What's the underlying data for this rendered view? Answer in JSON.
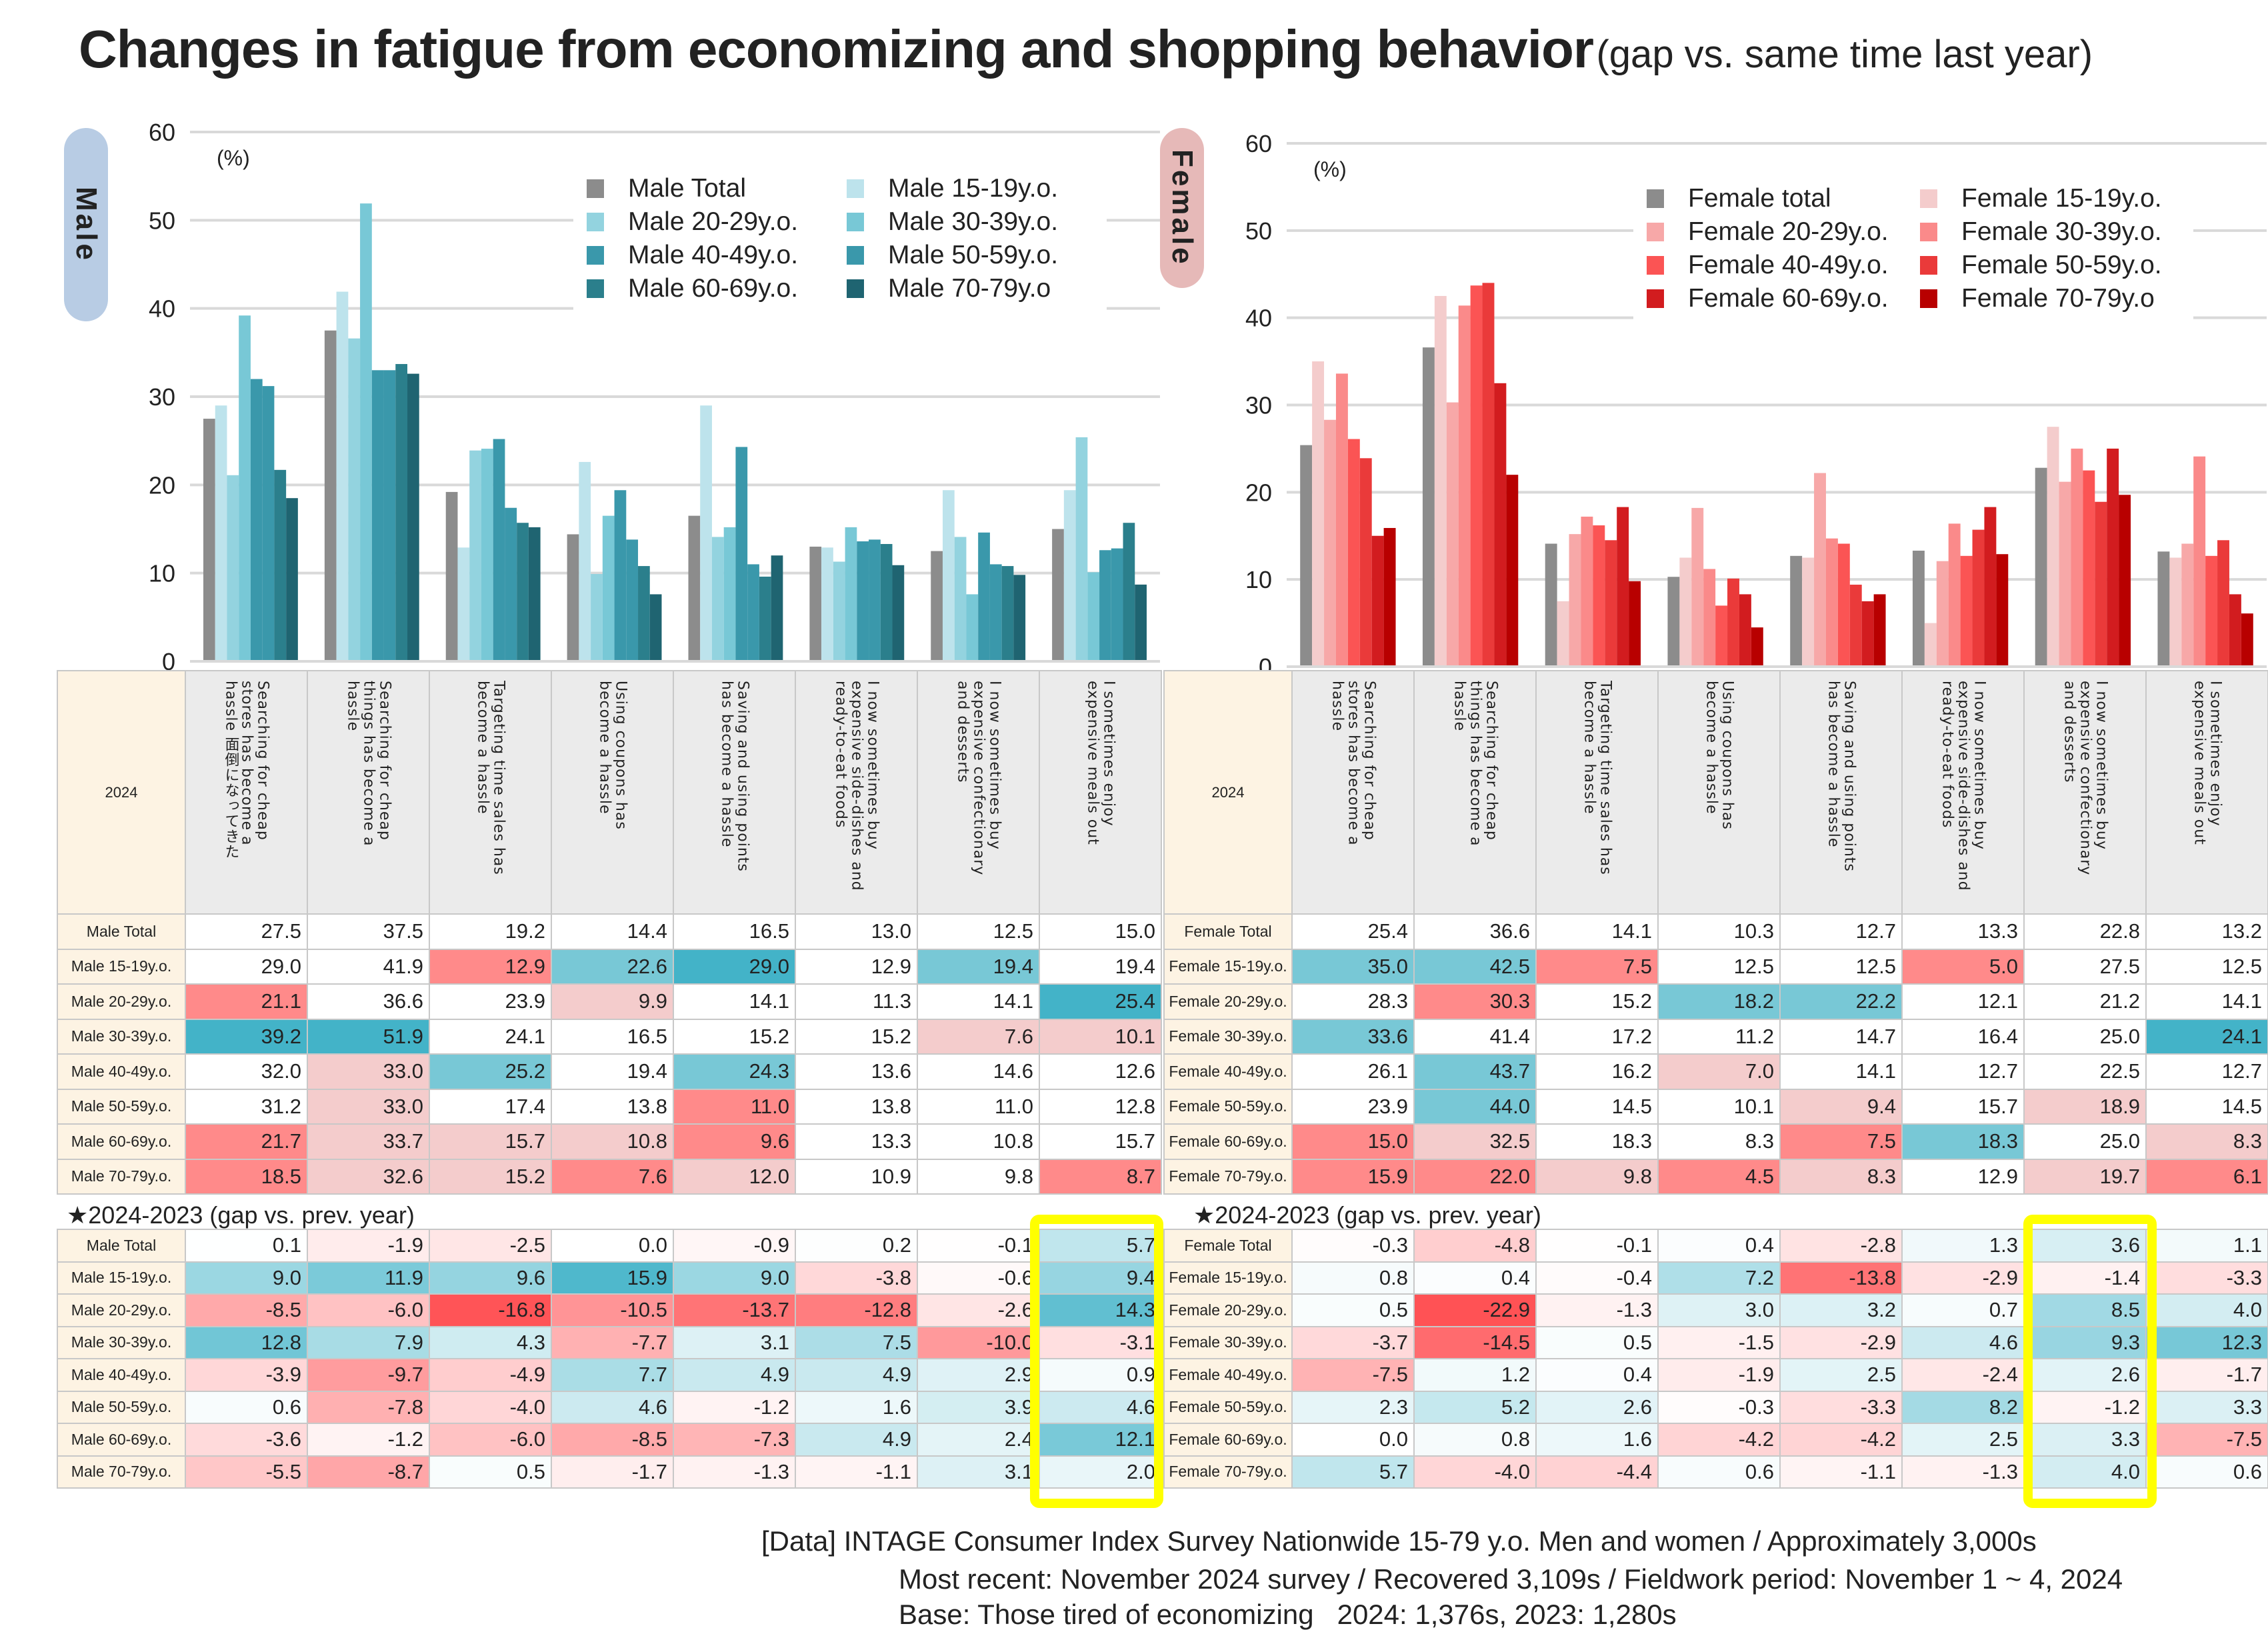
{
  "title": {
    "main": "Changes in fatigue from economizing and shopping behavior",
    "sub": "(gap vs. same time last year)"
  },
  "categories": [
    "Searching for cheap stores has become a hassle",
    "Searching for cheap things has become a hassle",
    "Targeting time sales has become a hassle",
    "Using coupons has become a hassle",
    "Saving and using points has become a hassle",
    "I now sometimes buy expensive side-dishes and ready-to-eat foods",
    "I now sometimes buy expensive confectionary and desserts",
    "I sometimes enjoy expensive meals out"
  ],
  "male": {
    "pill_label": "Male",
    "table_corner": "2024",
    "first_header_extra": "面倒になってきた",
    "diff_label": "★2024-2023 (gap vs. prev. year)",
    "rows": [
      "Male Total",
      "Male 15-19y.o.",
      "Male 20-29y.o.",
      "Male 30-39y.o.",
      "Male 40-49y.o.",
      "Male 50-59y.o.",
      "Male 60-69y.o.",
      "Male 70-79y.o."
    ]
  },
  "female": {
    "pill_label": "Female",
    "table_corner": "2024",
    "diff_label": "★2024-2023 (gap vs. prev. year)",
    "rows": [
      "Female Total",
      "Female 15-19y.o.",
      "Female 20-29y.o.",
      "Female 30-39y.o.",
      "Female 40-49y.o.",
      "Female 50-59y.o.",
      "Female 60-69y.o.",
      "Female 70-79y.o."
    ]
  },
  "chart_data": [
    {
      "type": "bar",
      "title": "Male",
      "ylabel": "(%)",
      "ylim": [
        0,
        60
      ],
      "yticks": [
        0,
        10,
        20,
        30,
        40,
        50,
        60
      ],
      "grid": true,
      "legend_position": "top-right",
      "categories": [
        "Searching for cheap stores has become a hassle",
        "Searching for cheap things has become a hassle",
        "Targeting time sales has become a hassle",
        "Using coupons has become a hassle",
        "Saving and using points has become a hassle",
        "I now sometimes buy expensive side-dishes and ready-to-eat foods",
        "I now sometimes buy expensive confectionary and desserts",
        "I sometimes enjoy expensive meals out"
      ],
      "series": [
        {
          "name": "Male Total",
          "color": "#8c8c8c",
          "values": [
            27.5,
            37.5,
            19.2,
            14.4,
            16.5,
            13.0,
            12.5,
            15.0
          ]
        },
        {
          "name": "Male 15-19y.o.",
          "color": "#bde3ec",
          "values": [
            29.0,
            41.9,
            12.9,
            22.6,
            29.0,
            12.9,
            19.4,
            19.4
          ]
        },
        {
          "name": "Male 20-29y.o.",
          "color": "#93d3df",
          "values": [
            21.1,
            36.6,
            23.9,
            9.9,
            14.1,
            11.3,
            14.1,
            25.4
          ]
        },
        {
          "name": "Male 30-39y.o.",
          "color": "#78c8d6",
          "values": [
            39.2,
            51.9,
            24.1,
            16.5,
            15.2,
            15.2,
            7.6,
            10.1
          ]
        },
        {
          "name": "Male 40-49y.o.",
          "color": "#3a98ab",
          "values": [
            32.0,
            33.0,
            25.2,
            19.4,
            24.3,
            13.6,
            14.6,
            12.6
          ]
        },
        {
          "name": "Male 50-59y.o.",
          "color": "#3a98ab",
          "values": [
            31.2,
            33.0,
            17.4,
            13.8,
            11.0,
            13.8,
            11.0,
            12.8
          ]
        },
        {
          "name": "Male 60-69y.o.",
          "color": "#2b7f8c",
          "values": [
            21.7,
            33.7,
            15.7,
            10.8,
            9.6,
            13.3,
            10.8,
            15.7
          ]
        },
        {
          "name": "Male 70-79y.o",
          "color": "#1f6471",
          "values": [
            18.5,
            32.6,
            15.2,
            7.6,
            12.0,
            10.9,
            9.8,
            8.7
          ]
        }
      ],
      "diff_vs_prev_year": [
        [
          0.1,
          -1.9,
          -2.5,
          0.0,
          -0.9,
          0.2,
          -0.1,
          5.7
        ],
        [
          9.0,
          11.9,
          9.6,
          15.9,
          9.0,
          -3.8,
          -0.6,
          9.4
        ],
        [
          -8.5,
          -6.0,
          -16.8,
          -10.5,
          -13.7,
          -12.8,
          -2.6,
          14.3
        ],
        [
          12.8,
          7.9,
          4.3,
          -7.7,
          3.1,
          7.5,
          -10.0,
          -3.1
        ],
        [
          -3.9,
          -9.7,
          -4.9,
          7.7,
          4.9,
          4.9,
          2.9,
          0.9
        ],
        [
          0.6,
          -7.8,
          -4.0,
          4.6,
          -1.2,
          1.6,
          3.9,
          4.6
        ],
        [
          -3.6,
          -1.2,
          -6.0,
          -8.5,
          -7.3,
          4.9,
          2.4,
          12.1
        ],
        [
          -5.5,
          -8.7,
          0.5,
          -1.7,
          -1.3,
          -1.1,
          3.1,
          2.0
        ]
      ],
      "highlighted_column": "I sometimes enjoy expensive meals out"
    },
    {
      "type": "bar",
      "title": "Female",
      "ylabel": "(%)",
      "ylim": [
        0,
        60
      ],
      "yticks": [
        0,
        10,
        20,
        30,
        40,
        50,
        60
      ],
      "grid": true,
      "legend_position": "top-right",
      "categories": [
        "Searching for cheap stores has become a hassle",
        "Searching for cheap things has become a hassle",
        "Targeting time sales has become a hassle",
        "Using coupons has become a hassle",
        "Saving and using points has become a hassle",
        "I now sometimes buy expensive side-dishes and ready-to-eat foods",
        "I now sometimes buy expensive confectionary and desserts",
        "I sometimes enjoy expensive meals out"
      ],
      "series": [
        {
          "name": "Female total",
          "color": "#8c8c8c",
          "values": [
            25.4,
            36.6,
            14.1,
            10.3,
            12.7,
            13.3,
            22.8,
            13.2
          ]
        },
        {
          "name": "Female 15-19y.o.",
          "color": "#f4cccc",
          "values": [
            35.0,
            42.5,
            7.5,
            12.5,
            12.5,
            5.0,
            27.5,
            12.5
          ]
        },
        {
          "name": "Female 20-29y.o.",
          "color": "#f7a8a8",
          "values": [
            28.3,
            30.3,
            15.2,
            18.2,
            22.2,
            12.1,
            21.2,
            14.1
          ]
        },
        {
          "name": "Female 30-39y.o.",
          "color": "#fa8a8a",
          "values": [
            33.6,
            41.4,
            17.2,
            11.2,
            14.7,
            16.4,
            25.0,
            24.1
          ]
        },
        {
          "name": "Female 40-49y.o.",
          "color": "#fb5454",
          "values": [
            26.1,
            43.7,
            16.2,
            7.0,
            14.1,
            12.7,
            22.5,
            12.7
          ]
        },
        {
          "name": "Female 50-59y.o.",
          "color": "#ea3a3a",
          "values": [
            23.9,
            44.0,
            14.5,
            10.1,
            9.4,
            15.7,
            18.9,
            14.5
          ]
        },
        {
          "name": "Female 60-69y.o.",
          "color": "#d21c1f",
          "values": [
            15.0,
            32.5,
            18.3,
            8.3,
            7.5,
            18.3,
            25.0,
            8.3
          ]
        },
        {
          "name": "Female 70-79y.o",
          "color": "#b80000",
          "values": [
            15.9,
            22.0,
            9.8,
            4.5,
            8.3,
            12.9,
            19.7,
            6.1
          ]
        }
      ],
      "diff_vs_prev_year": [
        [
          -0.3,
          -4.8,
          -0.1,
          0.4,
          -2.8,
          1.3,
          3.6,
          1.1
        ],
        [
          0.8,
          0.4,
          -0.4,
          7.2,
          -13.8,
          -2.9,
          -1.4,
          -3.3
        ],
        [
          0.5,
          -22.9,
          -1.3,
          3.0,
          3.2,
          0.7,
          8.5,
          4.0
        ],
        [
          -3.7,
          -14.5,
          0.5,
          -1.5,
          -2.9,
          4.6,
          9.3,
          12.3
        ],
        [
          -7.5,
          1.2,
          0.4,
          -1.9,
          2.5,
          -2.4,
          2.6,
          -1.7
        ],
        [
          2.3,
          5.2,
          2.6,
          -0.3,
          -3.3,
          8.2,
          -1.2,
          3.3
        ],
        [
          0.0,
          0.8,
          1.6,
          -4.2,
          -4.2,
          2.5,
          3.3,
          -7.5
        ],
        [
          5.7,
          -4.0,
          -4.4,
          0.6,
          -1.1,
          -1.3,
          4.0,
          0.6
        ]
      ],
      "highlighted_column": "I now sometimes buy expensive confectionary and desserts"
    }
  ],
  "footer": {
    "line1": "[Data] INTAGE Consumer Index Survey Nationwide 15-79 y.o. Men and women / Approximately 3,000s",
    "line2": "Most recent: November 2024 survey / Recovered 3,109s / Fieldwork period: November 1 ~ 4, 2024",
    "line3": "Base: Those tired of economizing   2024: 1,376s, 2023: 1,280s"
  }
}
